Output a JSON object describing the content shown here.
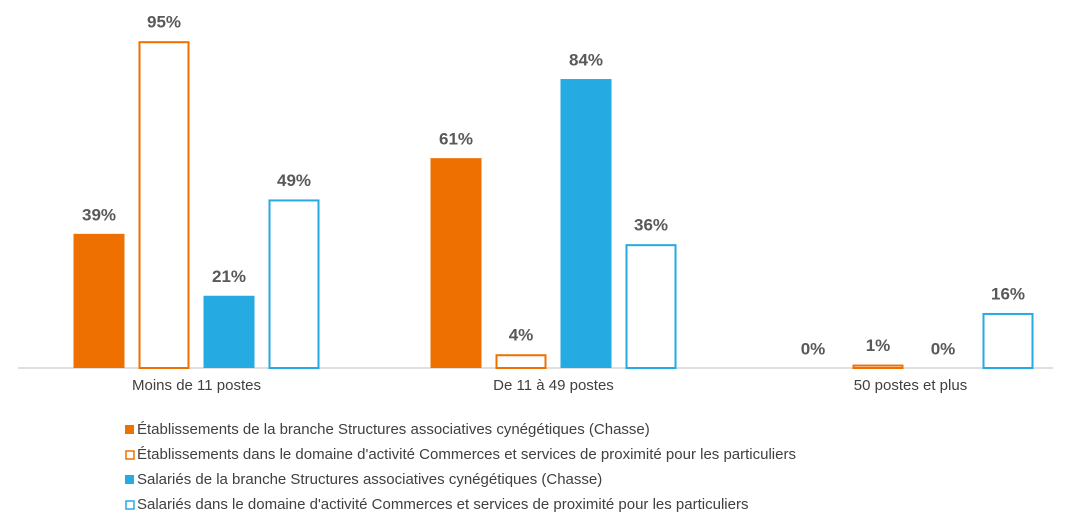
{
  "chart_data": {
    "type": "bar",
    "categories": [
      "Moins de 11 postes",
      "De 11 à 49 postes",
      "50 postes et plus"
    ],
    "series": [
      {
        "name": "Établissements de la branche Structures associatives cynégétiques (Chasse)",
        "color": "#ED7000",
        "filled": true,
        "values": [
          39,
          61,
          0
        ],
        "value_labels": [
          "39%",
          "61%",
          "0%"
        ]
      },
      {
        "name": "Établissements dans le domaine d'activité Commerces et services de proximité pour les particuliers",
        "color": "#ED7000",
        "filled": false,
        "values": [
          95,
          4,
          1
        ],
        "value_labels": [
          "95%",
          "4%",
          "1%"
        ]
      },
      {
        "name": "Salariés de la branche Structures associatives cynégétiques (Chasse)",
        "color": "#25AAE1",
        "filled": true,
        "values": [
          21,
          84,
          0
        ],
        "value_labels": [
          "21%",
          "84%",
          "0%"
        ]
      },
      {
        "name": "Salariés dans le domaine d'activité Commerces et services de proximité pour les particuliers",
        "color": "#25AAE1",
        "filled": false,
        "values": [
          49,
          36,
          16
        ],
        "value_labels": [
          "49%",
          "36%",
          "16%"
        ]
      }
    ]
  }
}
